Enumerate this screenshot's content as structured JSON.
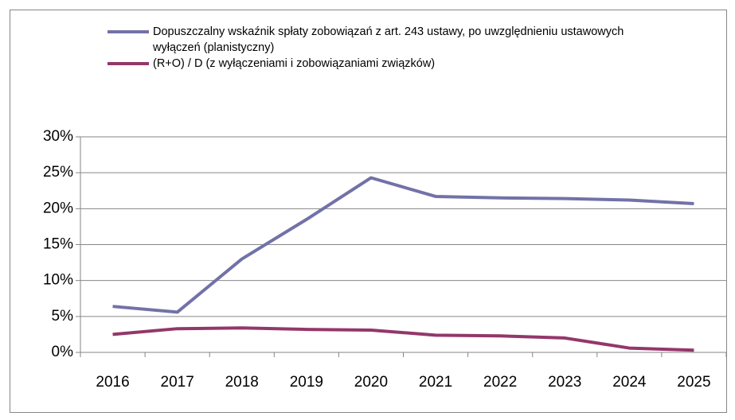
{
  "chart_data": {
    "type": "line",
    "categories": [
      "2016",
      "2017",
      "2018",
      "2019",
      "2020",
      "2021",
      "2022",
      "2023",
      "2024",
      "2025"
    ],
    "series": [
      {
        "name": "Dopuszczalny wskaźnik spłaty zobowiązań z art. 243 ustawy, po uwzględnieniu ustawowych wyłączeń (planistyczny)",
        "color": "#7272a8",
        "values": [
          6.4,
          5.6,
          13.0,
          18.5,
          24.3,
          21.7,
          21.5,
          21.4,
          21.2,
          20.7
        ]
      },
      {
        "name": "(R+O) / D (z wyłączeniami i zobowiązaniami związków)",
        "color": "#93376a",
        "values": [
          2.5,
          3.3,
          3.4,
          3.2,
          3.1,
          2.4,
          2.3,
          2.0,
          0.6,
          0.3
        ]
      }
    ],
    "ylim": [
      0,
      30
    ],
    "yticks": [
      {
        "value": 0,
        "label": "0%"
      },
      {
        "value": 5,
        "label": "5%"
      },
      {
        "value": 10,
        "label": "10%"
      },
      {
        "value": 15,
        "label": "15%"
      },
      {
        "value": 20,
        "label": "20%"
      },
      {
        "value": 25,
        "label": "25%"
      },
      {
        "value": 30,
        "label": "30%"
      }
    ],
    "grid": true,
    "legend": "top"
  }
}
